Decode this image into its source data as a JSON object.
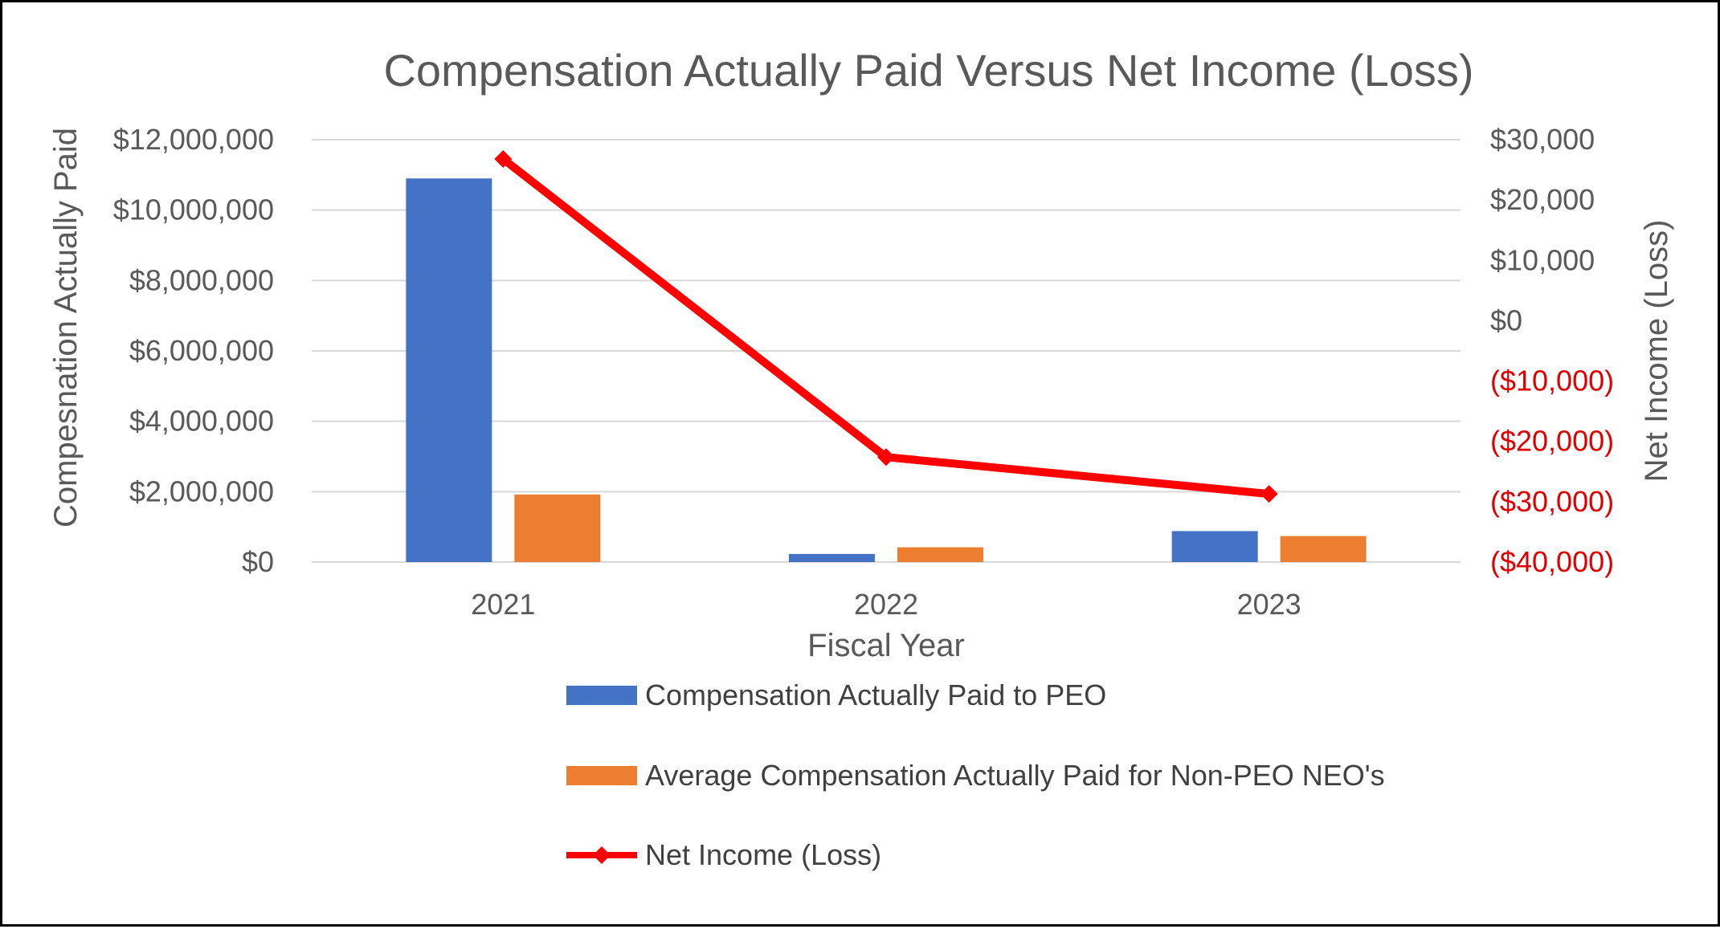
{
  "chart_data": {
    "type": "bar",
    "title": "Compensation Actually Paid Versus Net Income (Loss)",
    "xlabel": "Fiscal Year",
    "ylabel": "Compesnation Actually Paid",
    "y2label": "Net Income (Loss)",
    "categories": [
      "2021",
      "2022",
      "2023"
    ],
    "ylim": [
      0,
      12000000
    ],
    "y_ticks": [
      0,
      2000000,
      4000000,
      6000000,
      8000000,
      10000000,
      12000000
    ],
    "y_tick_labels": [
      "$0",
      "$2,000,000",
      "$4,000,000",
      "$6,000,000",
      "$8,000,000",
      "$10,000,000",
      "$12,000,000"
    ],
    "y2lim": [
      -40000,
      30000
    ],
    "y2_ticks": [
      -40000,
      -30000,
      -20000,
      -10000,
      0,
      10000,
      20000,
      30000
    ],
    "y2_tick_labels": [
      "($40,000)",
      "($30,000)",
      "($20,000)",
      "($10,000)",
      "$0",
      "$10,000",
      "$20,000",
      "$30,000"
    ],
    "grid": true,
    "legend_position": "bottom",
    "series": [
      {
        "name": "Compensation Actually Paid to PEO",
        "type": "bar",
        "axis": "left",
        "color": "#4472c4",
        "values": [
          10900000,
          230000,
          880000
        ]
      },
      {
        "name": "Average Compensation Actually Paid for Non-PEO NEO's",
        "type": "bar",
        "axis": "left",
        "color": "#ed7d31",
        "values": [
          1920000,
          420000,
          740000
        ]
      },
      {
        "name": "Net Income (Loss)",
        "type": "line",
        "axis": "right",
        "color": "#ff0000",
        "marker": "diamond",
        "values": [
          26800,
          -22600,
          -28700
        ]
      }
    ]
  },
  "colors": {
    "negative_tick": "#e00000",
    "gridline": "#d9d9d9",
    "text": "#595959"
  }
}
